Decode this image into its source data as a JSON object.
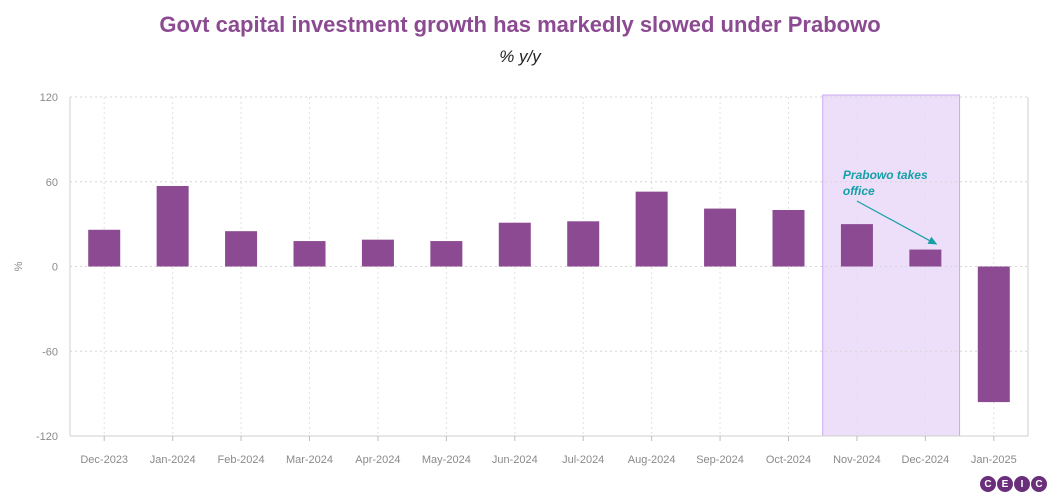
{
  "chart_data": {
    "type": "bar",
    "title": "Govt capital investment growth has markedly slowed under Prabowo",
    "subtitle": "% y/y",
    "ylabel": "%",
    "xlabel": "",
    "ylim": [
      -120,
      120
    ],
    "yticks": [
      120,
      60,
      0,
      -60,
      -120
    ],
    "categories": [
      "Dec-2023",
      "Jan-2024",
      "Feb-2024",
      "Mar-2024",
      "Apr-2024",
      "May-2024",
      "Jun-2024",
      "Jul-2024",
      "Aug-2024",
      "Sep-2024",
      "Oct-2024",
      "Nov-2024",
      "Dec-2024",
      "Jan-2025"
    ],
    "values": [
      26,
      57,
      25,
      18,
      19,
      18,
      31,
      32,
      53,
      41,
      40,
      30,
      12,
      -96
    ],
    "highlight": {
      "from": "Nov-2024",
      "to": "Dec-2024"
    },
    "annotation": {
      "lines": [
        "Prabowo takes",
        "office"
      ],
      "target": "Dec-2024"
    },
    "bar_color": "#8b4a91",
    "highlight_color": "#eddff9",
    "annotation_color": "#16a0a6"
  },
  "logo": {
    "letters": [
      "C",
      "E",
      "I",
      "C"
    ]
  }
}
